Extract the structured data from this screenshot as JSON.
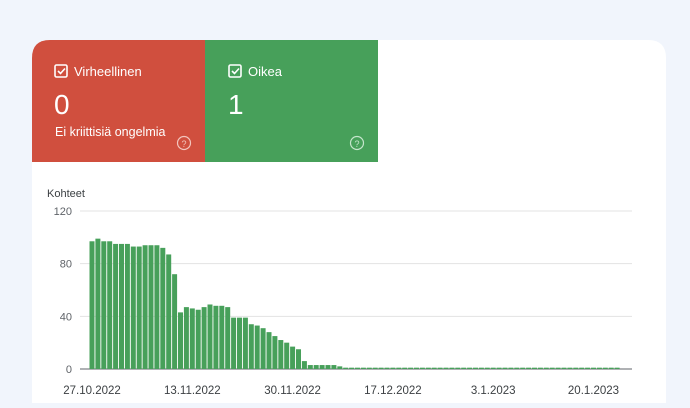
{
  "cards": [
    {
      "label": "Virheellinen",
      "value": "0",
      "note": "Ei kriittisiä ongelmia",
      "help": "?"
    },
    {
      "label": "Oikea",
      "value": "1",
      "help": "?"
    }
  ],
  "chart_data": {
    "type": "bar",
    "y_label": "Kohteet",
    "color": "#47a05a",
    "grid": true,
    "ylim": [
      0,
      120
    ],
    "yticks": [
      0,
      40,
      80,
      120
    ],
    "categories": [
      "27.10.2022",
      null,
      null,
      null,
      null,
      null,
      null,
      null,
      null,
      null,
      null,
      null,
      null,
      null,
      null,
      null,
      null,
      "13.11.2022",
      null,
      null,
      null,
      null,
      null,
      null,
      null,
      null,
      null,
      null,
      null,
      null,
      null,
      null,
      null,
      null,
      "30.11.2022",
      null,
      null,
      null,
      null,
      null,
      null,
      null,
      null,
      null,
      null,
      null,
      null,
      null,
      null,
      null,
      null,
      "17.12.2022",
      null,
      null,
      null,
      null,
      null,
      null,
      null,
      null,
      null,
      null,
      null,
      null,
      null,
      null,
      null,
      null,
      "3.1.2023",
      null,
      null,
      null,
      null,
      null,
      null,
      null,
      null,
      null,
      null,
      null,
      null,
      null,
      null,
      null,
      null,
      "20.1.2023",
      null,
      null,
      null,
      null
    ],
    "values": [
      97,
      99,
      97,
      97,
      95,
      95,
      95,
      93,
      93,
      94,
      94,
      94,
      92,
      87,
      72,
      43,
      47,
      46,
      45,
      47,
      49,
      48,
      48,
      47,
      39,
      39,
      39,
      34,
      33,
      31,
      28,
      25,
      22,
      20,
      17,
      15,
      6,
      3,
      3,
      3,
      3,
      3,
      2,
      1,
      1,
      1,
      1,
      1,
      1,
      1,
      1,
      1,
      1,
      1,
      1,
      1,
      1,
      1,
      1,
      1,
      1,
      1,
      1,
      1,
      1,
      1,
      1,
      1,
      1,
      1,
      1,
      1,
      1,
      1,
      1,
      1,
      1,
      1,
      1,
      1,
      1,
      1,
      1,
      1,
      1,
      1,
      1,
      1,
      1,
      1
    ]
  }
}
